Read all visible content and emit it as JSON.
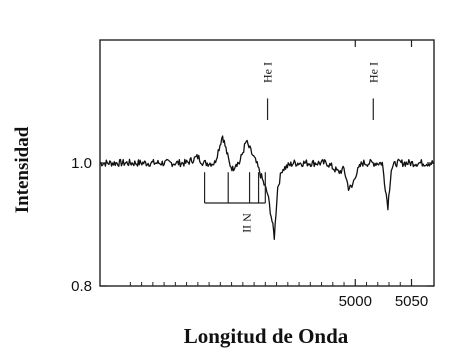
{
  "chart_data": {
    "type": "line",
    "xlabel": "Longitud de Onda",
    "ylabel": "Intensidad",
    "xlim": [
      4773,
      5070
    ],
    "ylim": [
      0.8,
      1.2
    ],
    "x_ticks": [
      5000,
      5050
    ],
    "y_ticks": [
      0.8,
      1.0
    ],
    "y_tick_labels": [
      "0.8",
      "1.0"
    ],
    "series": [
      {
        "x": [
          4773,
          4800,
          4830,
          4850,
          4860,
          4865,
          4870,
          4875,
          4882,
          4888,
          4891,
          4894,
          4897,
          4903,
          4912,
          4922,
          4926,
          4928,
          4931,
          4935,
          4945,
          4955,
          4965,
          4975,
          4985,
          4990,
          4994,
          4997,
          5000,
          5003,
          5006,
          5010,
          5015,
          5020,
          5024,
          5026,
          5029,
          5032,
          5036,
          5040,
          5046,
          5050,
          5054,
          5058,
          5062,
          5066,
          5070
        ],
        "y": [
          1.0,
          1.0,
          1.0,
          1.0,
          1.01,
          1.0,
          1.0,
          1.0,
          1.045,
          1.0,
          0.99,
          1.0,
          1.0,
          1.035,
          1.0,
          0.95,
          0.905,
          0.88,
          0.96,
          0.99,
          1.0,
          1.0,
          1.0,
          1.0,
          0.985,
          0.99,
          0.96,
          0.96,
          0.98,
          0.99,
          1.0,
          1.0,
          1.0,
          1.0,
          1.0,
          0.97,
          0.93,
          0.99,
          1.0,
          1.0,
          1.0,
          1.0,
          1.0,
          1.0,
          1.0,
          1.0,
          1.0
        ]
      }
    ],
    "annotations": [
      {
        "text": "N II",
        "wavelengths": [
          4866,
          4887,
          4906,
          4914,
          4920
        ]
      },
      {
        "text": "He I",
        "x": 4922
      },
      {
        "text": "He I",
        "x": 5016
      }
    ],
    "grid": false
  }
}
